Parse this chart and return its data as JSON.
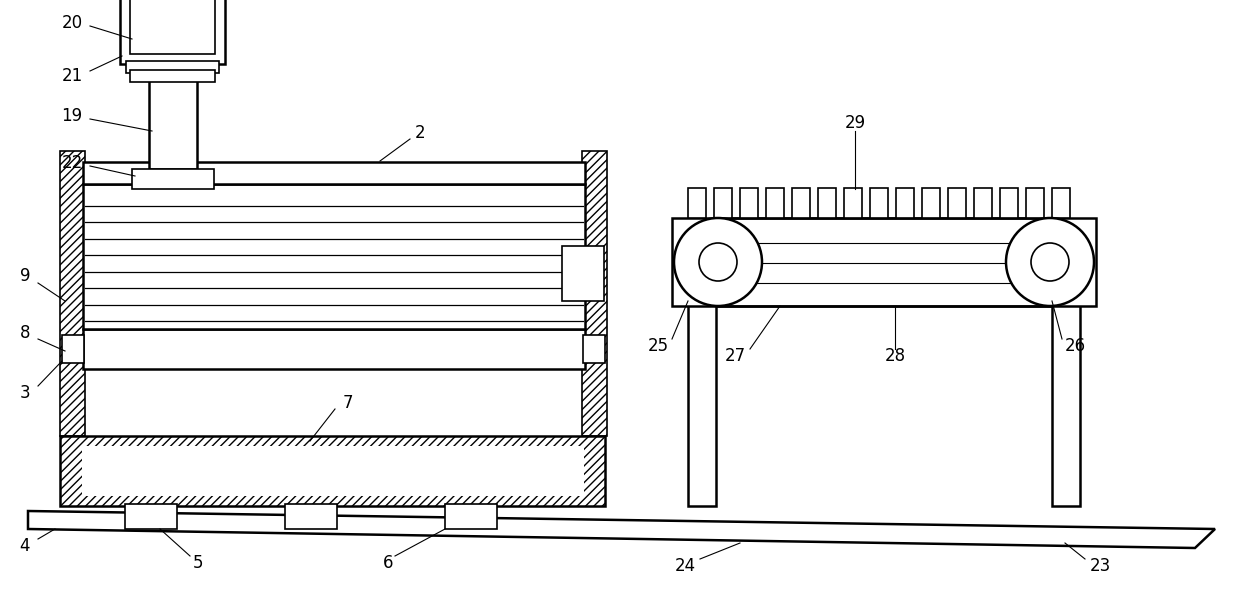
{
  "bg_color": "#ffffff",
  "line_color": "#000000",
  "fig_width": 12.4,
  "fig_height": 6.11,
  "lw": 1.2,
  "lw2": 1.8
}
